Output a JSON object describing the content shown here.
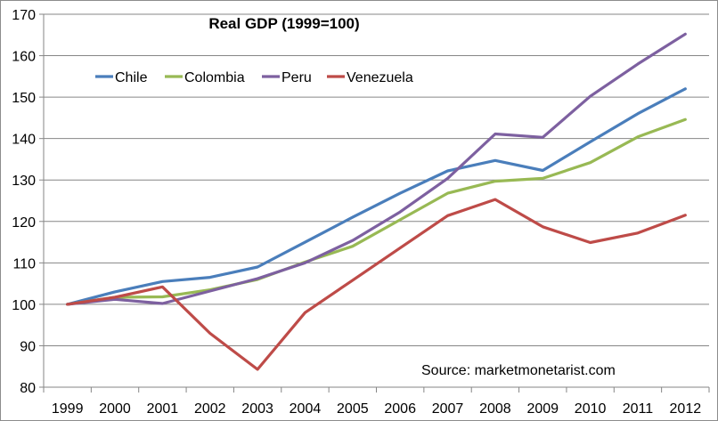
{
  "chart_data": {
    "type": "line",
    "title": "Real GDP (1999=100)",
    "annotation": "Source: marketmonetarist.com",
    "xlabel": "",
    "ylabel": "",
    "x": [
      "1999",
      "2000",
      "2001",
      "2002",
      "2003",
      "2004",
      "2005",
      "2006",
      "2007",
      "2008",
      "2009",
      "2010",
      "2011",
      "2012"
    ],
    "ylim": [
      80,
      170
    ],
    "yticks": [
      80,
      90,
      100,
      110,
      120,
      130,
      140,
      150,
      160,
      170
    ],
    "grid": true,
    "legend_position": "top-left",
    "series": [
      {
        "name": "Chile",
        "color": "#4a7ebb",
        "values": [
          100,
          103,
          105.5,
          106.5,
          109,
          115,
          121,
          126.8,
          132.2,
          134.7,
          132.3,
          139.2,
          146,
          152
        ]
      },
      {
        "name": "Colombia",
        "color": "#98b954",
        "values": [
          100,
          101.7,
          101.8,
          103.5,
          106,
          110.2,
          114,
          120.4,
          126.8,
          129.7,
          130.4,
          134.2,
          140.4,
          144.6
        ]
      },
      {
        "name": "Peru",
        "color": "#7d60a0",
        "values": [
          100,
          101.2,
          100.2,
          103.2,
          106.2,
          110,
          115.4,
          122.3,
          130.4,
          141.1,
          140.3,
          150.2,
          158,
          165.2
        ]
      },
      {
        "name": "Venezuela",
        "color": "#be4b48",
        "values": [
          100,
          101.7,
          104.2,
          93,
          84.3,
          98,
          105.8,
          113.6,
          121.4,
          125.3,
          118.7,
          114.9,
          117.2,
          121.5
        ]
      }
    ]
  }
}
